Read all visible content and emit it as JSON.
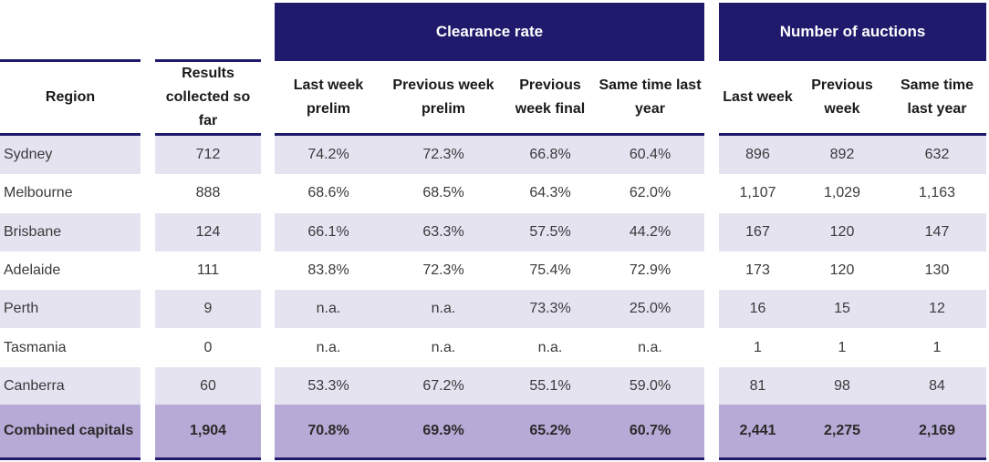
{
  "colors": {
    "header_band": "#1f1a6b",
    "alt_row": "#e6e3f1",
    "total_row": "#b7aad6"
  },
  "groups": {
    "clearance_rate": "Clearance rate",
    "number_of_auctions": "Number of auctions"
  },
  "columns": {
    "region": "Region",
    "results": "Results collected so far",
    "cr_last_week": "Last week prelim",
    "cr_prev_week": "Previous week prelim",
    "cr_prev_final": "Previous week final",
    "cr_same_time": "Same time last year",
    "na_last_week": "Last week",
    "na_prev_week": "Previous week",
    "na_same_time": "Same time last year"
  },
  "rows": [
    {
      "region": "Sydney",
      "results": "712",
      "cr_last": "74.2%",
      "cr_prev": "72.3%",
      "cr_final": "66.8%",
      "cr_year": "60.4%",
      "na_last": "896",
      "na_prev": "892",
      "na_year": "632"
    },
    {
      "region": "Melbourne",
      "results": "888",
      "cr_last": "68.6%",
      "cr_prev": "68.5%",
      "cr_final": "64.3%",
      "cr_year": "62.0%",
      "na_last": "1,107",
      "na_prev": "1,029",
      "na_year": "1,163"
    },
    {
      "region": "Brisbane",
      "results": "124",
      "cr_last": "66.1%",
      "cr_prev": "63.3%",
      "cr_final": "57.5%",
      "cr_year": "44.2%",
      "na_last": "167",
      "na_prev": "120",
      "na_year": "147"
    },
    {
      "region": "Adelaide",
      "results": "111",
      "cr_last": "83.8%",
      "cr_prev": "72.3%",
      "cr_final": "75.4%",
      "cr_year": "72.9%",
      "na_last": "173",
      "na_prev": "120",
      "na_year": "130"
    },
    {
      "region": "Perth",
      "results": "9",
      "cr_last": "n.a.",
      "cr_prev": "n.a.",
      "cr_final": "73.3%",
      "cr_year": "25.0%",
      "na_last": "16",
      "na_prev": "15",
      "na_year": "12"
    },
    {
      "region": "Tasmania",
      "results": "0",
      "cr_last": "n.a.",
      "cr_prev": "n.a.",
      "cr_final": "n.a.",
      "cr_year": "n.a.",
      "na_last": "1",
      "na_prev": "1",
      "na_year": "1"
    },
    {
      "region": "Canberra",
      "results": "60",
      "cr_last": "53.3%",
      "cr_prev": "67.2%",
      "cr_final": "55.1%",
      "cr_year": "59.0%",
      "na_last": "81",
      "na_prev": "98",
      "na_year": "84"
    }
  ],
  "total": {
    "region": "Combined capitals",
    "results": "1,904",
    "cr_last": "70.8%",
    "cr_prev": "69.9%",
    "cr_final": "65.2%",
    "cr_year": "60.7%",
    "na_last": "2,441",
    "na_prev": "2,275",
    "na_year": "2,169"
  }
}
